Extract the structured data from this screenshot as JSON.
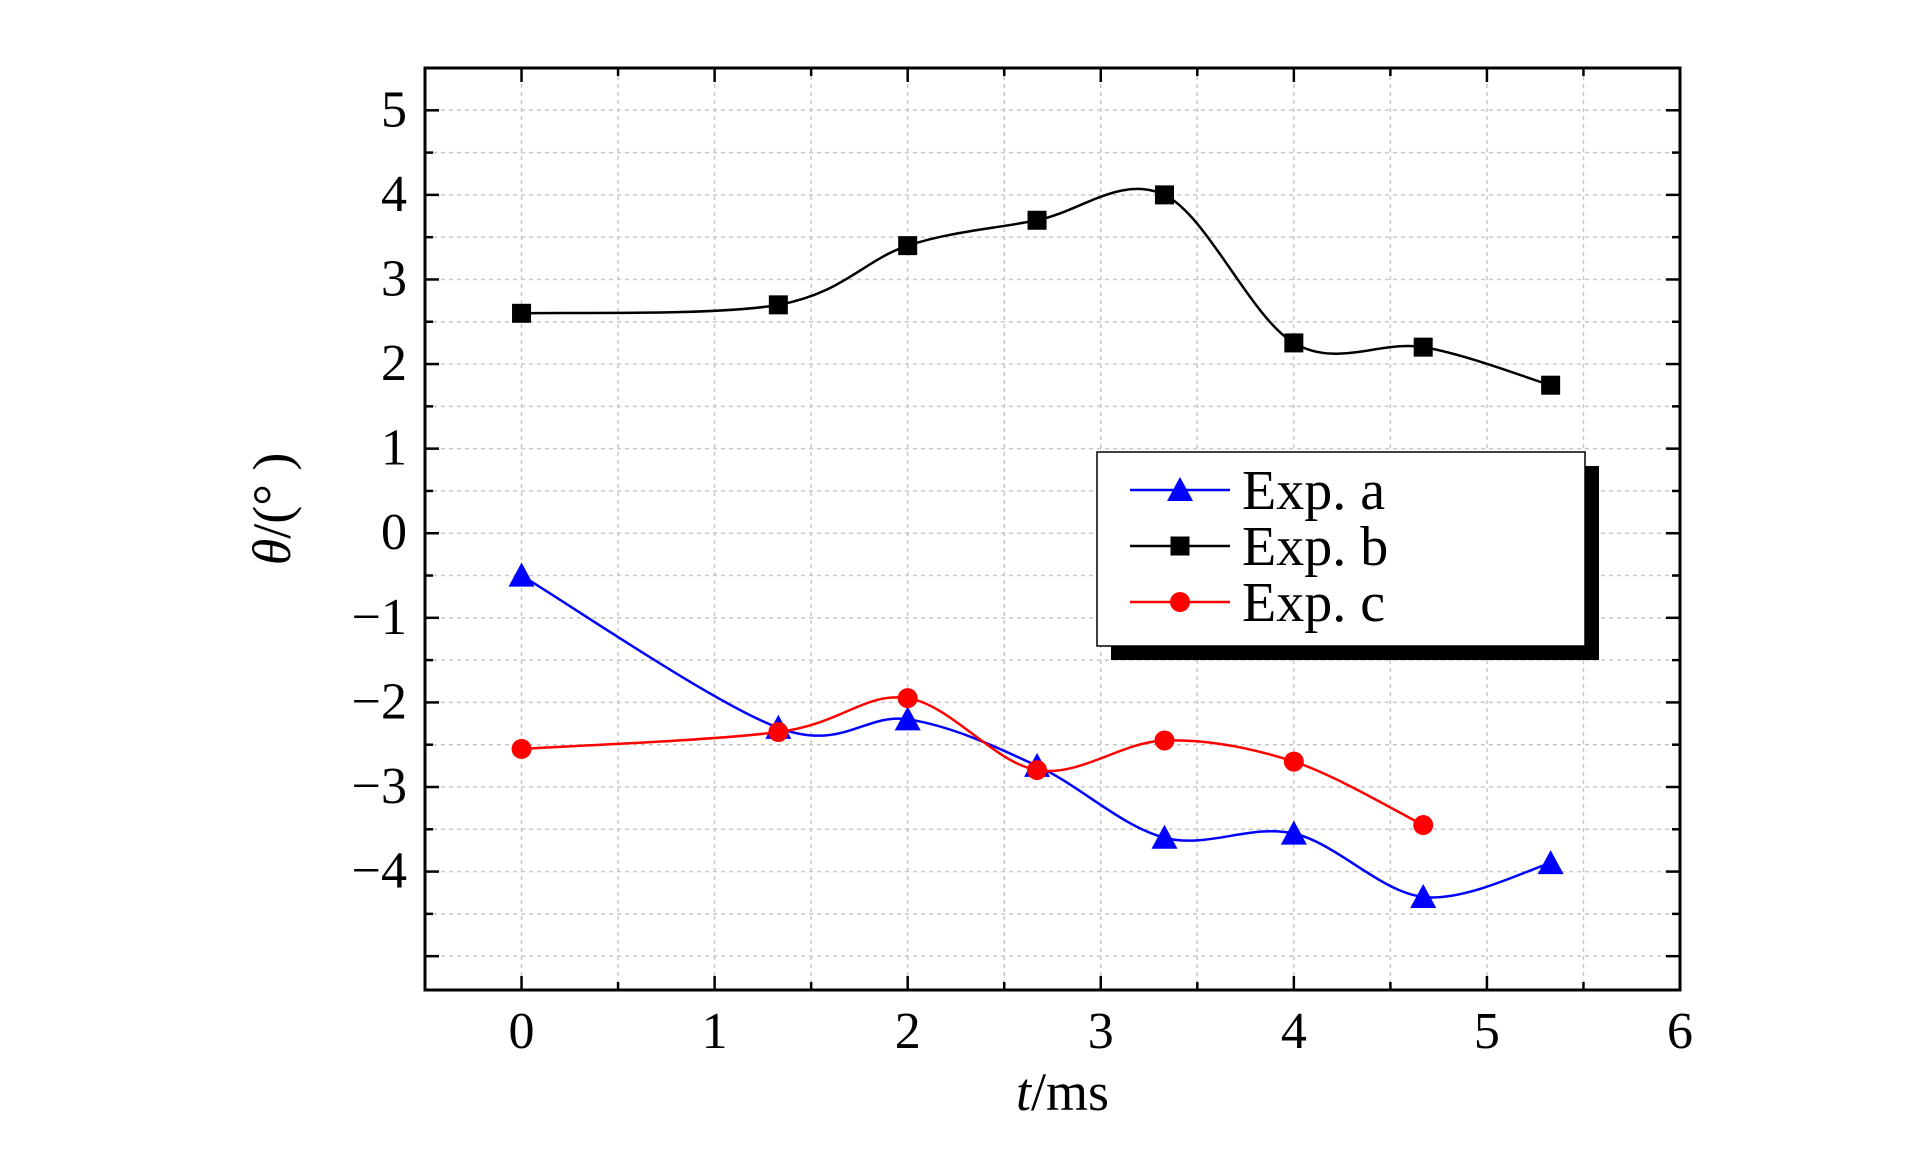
{
  "chart_data": {
    "type": "line",
    "xlabel": {
      "italic": "t",
      "rest": "/ms"
    },
    "ylabel": {
      "italic": "θ",
      "rest": "/(° )"
    },
    "xlim": [
      -0.5,
      6
    ],
    "ylim": [
      -5.4,
      5.5
    ],
    "x_ticks": [
      "0",
      "1",
      "2",
      "3",
      "4",
      "5",
      "6"
    ],
    "y_ticks": [
      "5",
      "4",
      "3",
      "2",
      "1",
      "0",
      "−1",
      "−2",
      "−3",
      "−4"
    ],
    "grid": true,
    "legend_position": "center-right",
    "series": [
      {
        "name": "Exp. a",
        "color": "#0000ff",
        "marker": "triangle",
        "x": [
          0,
          1.33,
          2.0,
          2.67,
          3.33,
          4.0,
          4.67,
          5.33
        ],
        "y": [
          -0.5,
          -2.3,
          -2.2,
          -2.75,
          -3.6,
          -3.55,
          -4.3,
          -3.9
        ]
      },
      {
        "name": "Exp. b",
        "color": "#000000",
        "marker": "square",
        "x": [
          0,
          1.33,
          2.0,
          2.67,
          3.33,
          4.0,
          4.67,
          5.33
        ],
        "y": [
          2.6,
          2.7,
          3.4,
          3.7,
          4.0,
          2.25,
          2.2,
          1.75
        ]
      },
      {
        "name": "Exp. c",
        "color": "#ff0000",
        "marker": "circle",
        "x": [
          0,
          1.33,
          2.0,
          2.67,
          3.33,
          4.0,
          4.67
        ],
        "y": [
          -2.55,
          -2.35,
          -1.95,
          -2.8,
          -2.45,
          -2.7,
          -3.45
        ]
      }
    ]
  }
}
